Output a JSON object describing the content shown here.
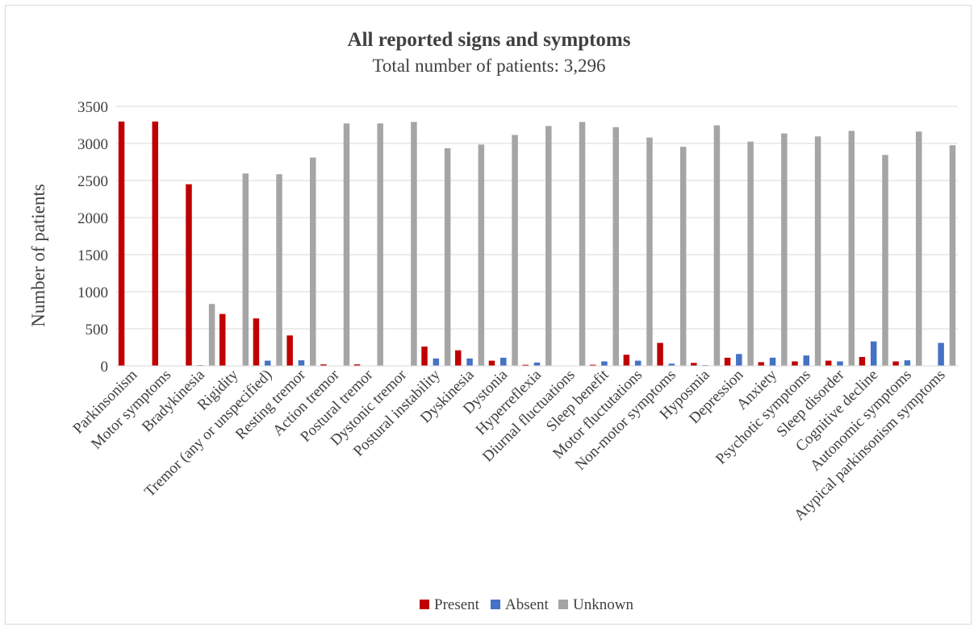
{
  "chart_data": {
    "type": "bar",
    "title": "All reported signs and symptoms",
    "subtitle": "Total number of patients: 3,296",
    "xlabel": "",
    "ylabel": "Number of patients",
    "ylim": [
      0,
      3500
    ],
    "yticks": [
      0,
      500,
      1000,
      1500,
      2000,
      2500,
      3000,
      3500
    ],
    "grid": true,
    "legend_position": "bottom",
    "categories": [
      "Parkinsonism",
      "Motor symptoms",
      "Bradykinesia",
      "Rigidity",
      "Tremor (any or unspecified)",
      "Resting tremor",
      "Action tremor",
      "Postural tremor",
      "Dystonic tremor",
      "Postural instability",
      "Dyskinesia",
      "Dystonia",
      "Hyperreflexia",
      "Diurnal fluctuations",
      "Sleep benefit",
      "Motor fluctutations",
      "Non-motor symptoms",
      "Hyposmia",
      "Depression",
      "Anxiety",
      "Psychotic symptoms",
      "Sleep disorder",
      "Cognitive decline",
      "Autonomic symptoms",
      "Atypical parkinsonism symptoms"
    ],
    "series": [
      {
        "name": "Present",
        "color": "#c00000",
        "values": [
          3296,
          3296,
          2450,
          700,
          640,
          410,
          20,
          20,
          5,
          260,
          210,
          70,
          15,
          5,
          15,
          150,
          310,
          40,
          110,
          50,
          60,
          70,
          120,
          60,
          5
        ]
      },
      {
        "name": "Absent",
        "color": "#4472c4",
        "values": [
          0,
          0,
          10,
          5,
          70,
          75,
          5,
          5,
          5,
          100,
          100,
          110,
          45,
          5,
          60,
          70,
          30,
          10,
          160,
          110,
          140,
          60,
          330,
          75,
          310
        ]
      },
      {
        "name": "Unknown",
        "color": "#a5a5a5",
        "values": [
          0,
          0,
          835,
          2595,
          2585,
          2810,
          3270,
          3270,
          3290,
          2935,
          2985,
          3115,
          3235,
          3290,
          3220,
          3080,
          2955,
          3245,
          3025,
          3135,
          3095,
          3170,
          2845,
          3160,
          2975
        ]
      }
    ]
  }
}
